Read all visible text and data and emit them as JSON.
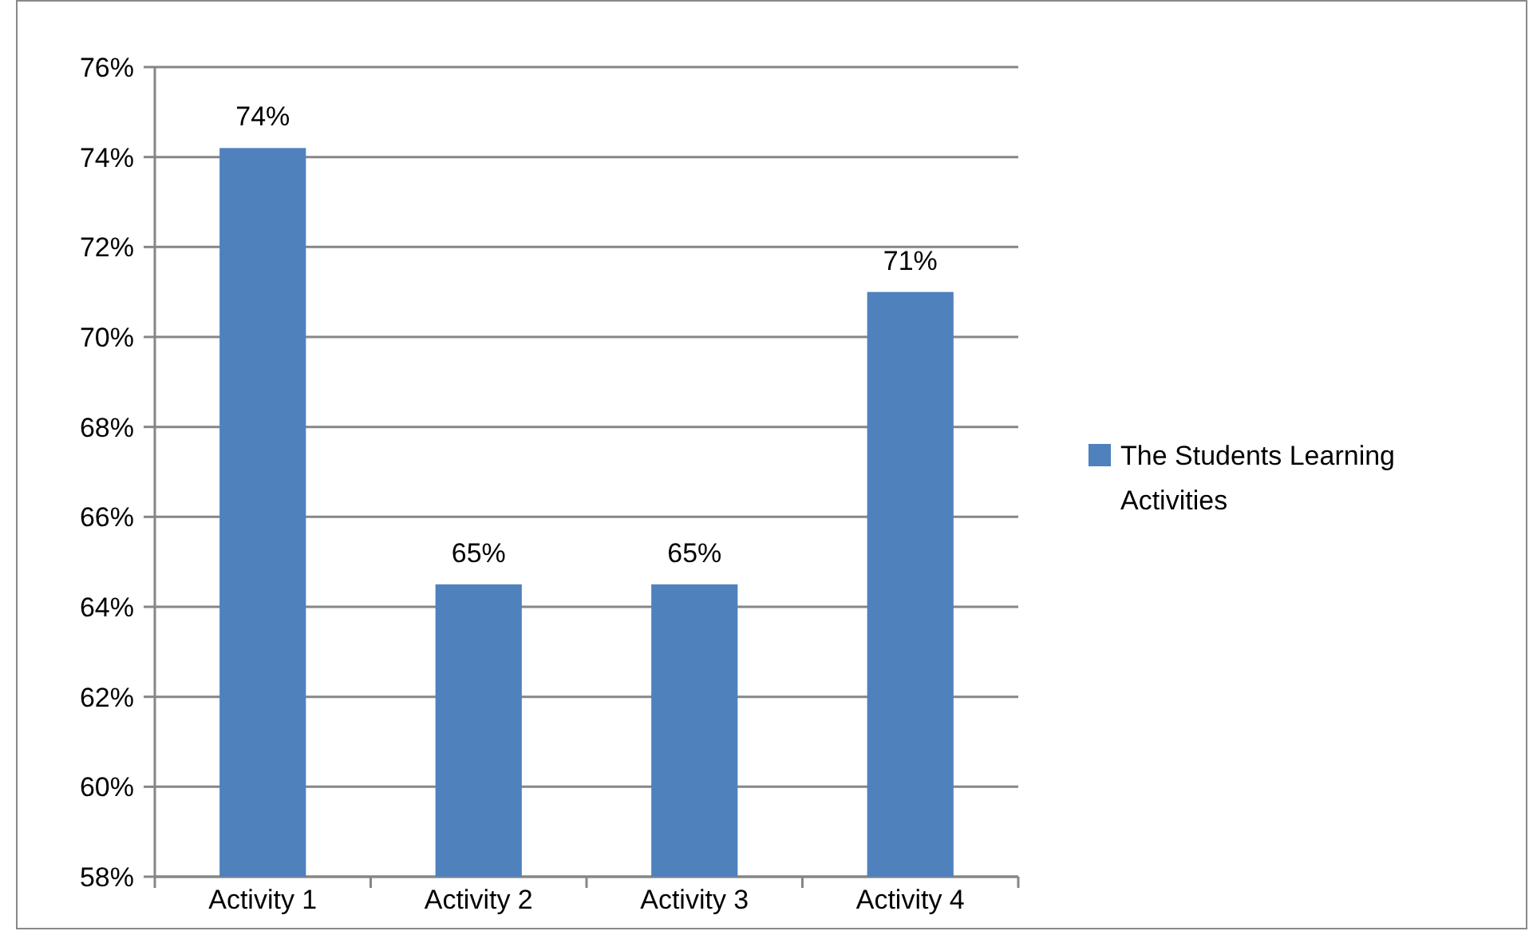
{
  "chart_data": {
    "type": "bar",
    "categories": [
      "Activity 1",
      "Activity 2",
      "Activity 3",
      "Activity 4"
    ],
    "series": [
      {
        "name": "The Students Learning Activities",
        "color": "#4f81bd",
        "values": [
          74.2,
          64.5,
          64.5,
          71.0
        ],
        "value_labels": [
          "74%",
          "65%",
          "65%",
          "71%"
        ]
      }
    ],
    "ylim": [
      58,
      76
    ],
    "yticks": [
      {
        "value": 58,
        "label": "58%"
      },
      {
        "value": 60,
        "label": "60%"
      },
      {
        "value": 62,
        "label": "62%"
      },
      {
        "value": 64,
        "label": "64%"
      },
      {
        "value": 66,
        "label": "66%"
      },
      {
        "value": 68,
        "label": "68%"
      },
      {
        "value": 70,
        "label": "70%"
      },
      {
        "value": 72,
        "label": "72%"
      },
      {
        "value": 74,
        "label": "74%"
      },
      {
        "value": 76,
        "label": "76%"
      }
    ],
    "grid": "y",
    "legend": "right"
  }
}
